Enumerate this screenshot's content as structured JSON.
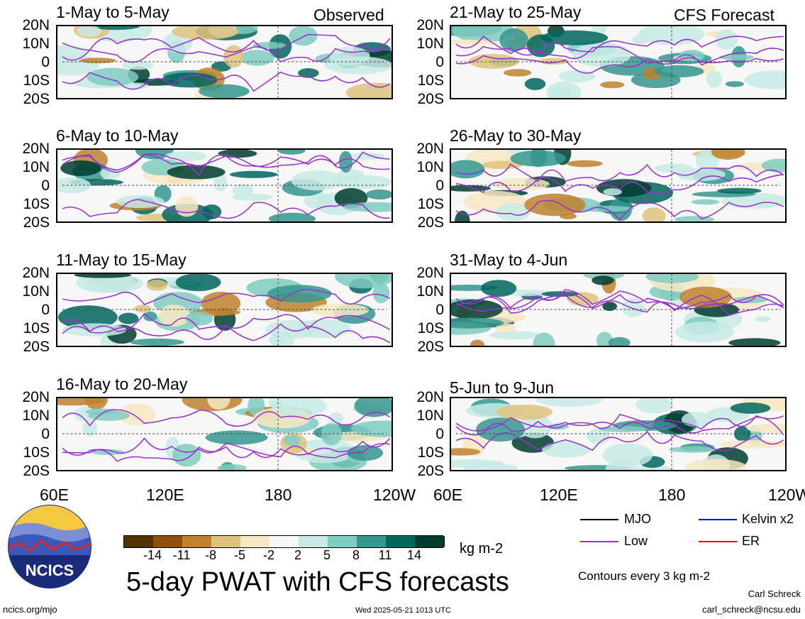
{
  "panels": [
    {
      "title": "1-May to 5-May",
      "tag": "Observed"
    },
    {
      "title": "6-May to 10-May",
      "tag": ""
    },
    {
      "title": "11-May to 15-May",
      "tag": ""
    },
    {
      "title": "16-May to 20-May",
      "tag": ""
    },
    {
      "title": "21-May to 25-May",
      "tag": "CFS Forecast"
    },
    {
      "title": "26-May to 30-May",
      "tag": ""
    },
    {
      "title": "31-May to 4-Jun",
      "tag": ""
    },
    {
      "title": "5-Jun to 9-Jun",
      "tag": ""
    }
  ],
  "y_ticks": [
    "20N",
    "10N",
    "0",
    "10S",
    "20S"
  ],
  "x_ticks": [
    "60E",
    "120E",
    "180",
    "120W"
  ],
  "colorbar": {
    "colors": [
      "#543005",
      "#8c510a",
      "#bf812d",
      "#dfc27d",
      "#f6e8c3",
      "#f7f7f7",
      "#c7eae5",
      "#80cdc1",
      "#35978f",
      "#01665e",
      "#003c30"
    ],
    "labels": [
      "-14",
      "-11",
      "-8",
      "-5",
      "-2",
      "2",
      "5",
      "8",
      "11",
      "14"
    ],
    "units": "kg m-2"
  },
  "title": "5-day PWAT with CFS forecasts",
  "legend": {
    "mjo": "MJO",
    "kelvin": "Kelvin x2",
    "low": "Low",
    "er": "ER",
    "mjo_color": "#000000",
    "kelvin_color": "#0000ff",
    "low_color": "#9933cc",
    "er_color": "#ff0000"
  },
  "contours_note": "Contours every 3 kg m-2",
  "author": "Carl Schreck",
  "email": "carl_schreck@ncsu.edu",
  "website": "ncics.org/mjo",
  "timestamp": "Wed 2025-05-21 1013 UTC",
  "logo_text": "NCICS"
}
